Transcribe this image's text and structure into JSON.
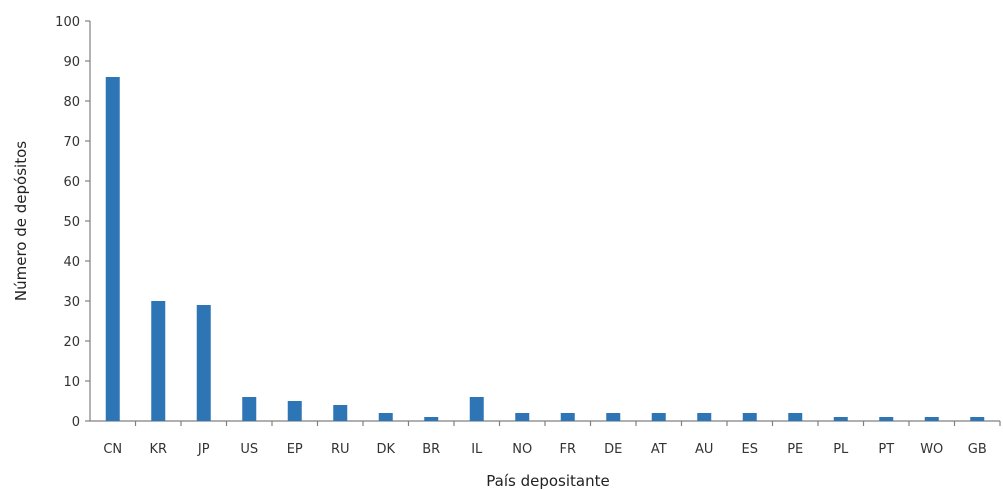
{
  "chart_data": {
    "type": "bar",
    "xlabel": "País depositante",
    "ylabel": "Número de depósitos",
    "categories": [
      "CN",
      "KR",
      "JP",
      "US",
      "EP",
      "RU",
      "DK",
      "BR",
      "IL",
      "NO",
      "FR",
      "DE",
      "AT",
      "AU",
      "ES",
      "PE",
      "PL",
      "PT",
      "WO",
      "GB"
    ],
    "values": [
      86,
      30,
      29,
      6,
      5,
      4,
      2,
      1,
      6,
      2,
      2,
      2,
      2,
      2,
      2,
      2,
      1,
      1,
      1,
      1
    ],
    "ylim": [
      0,
      100
    ],
    "yticks": [
      0,
      10,
      20,
      30,
      40,
      50,
      60,
      70,
      80,
      90,
      100
    ],
    "grid": false,
    "legend": "none",
    "bar_color": "#2e75b6"
  }
}
